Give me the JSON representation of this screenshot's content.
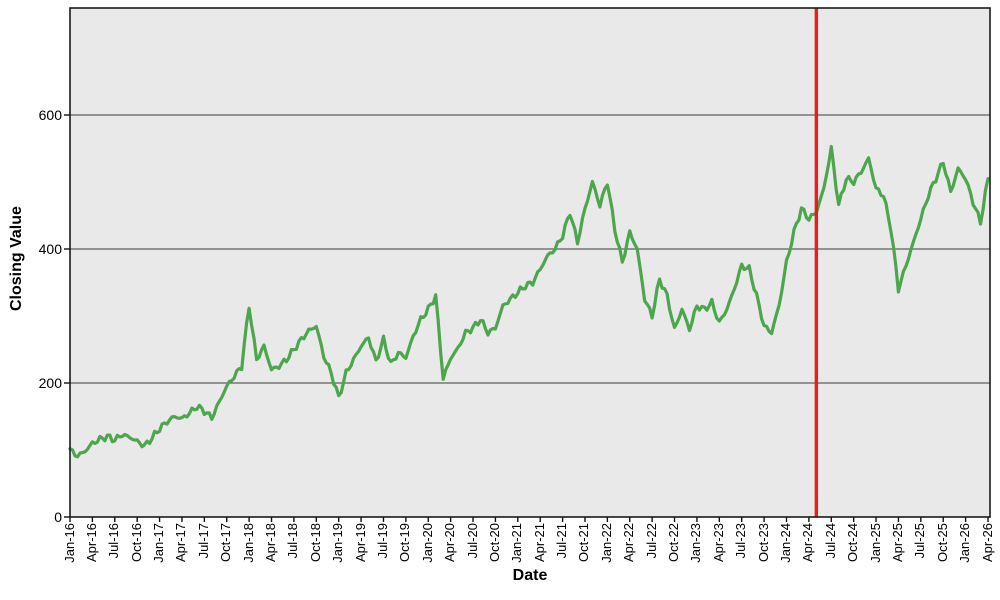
{
  "chart_data": {
    "type": "line",
    "title": "",
    "xlabel": "Date",
    "ylabel": "Closing Value",
    "x_unit": "month",
    "x_range": {
      "start": "Jan-16",
      "end": "Apr-26",
      "months_total": 124
    },
    "x_tick_labels": [
      "Jan-16",
      "Apr-16",
      "Jul-16",
      "Oct-16",
      "Jan-17",
      "Apr-17",
      "Jul-17",
      "Oct-17",
      "Jan-18",
      "Apr-18",
      "Jul-18",
      "Oct-18",
      "Jan-19",
      "Apr-19",
      "Jul-19",
      "Oct-19",
      "Jan-20",
      "Apr-20",
      "Jul-20",
      "Oct-20",
      "Jan-21",
      "Apr-21",
      "Jul-21",
      "Oct-21",
      "Jan-22",
      "Apr-22",
      "Jul-22",
      "Oct-22",
      "Jan-23",
      "Apr-23",
      "Jul-23",
      "Oct-23",
      "Jan-24",
      "Apr-24",
      "Jul-24",
      "Oct-24",
      "Jan-25",
      "Apr-25",
      "Jul-25",
      "Oct-25",
      "Jan-26",
      "Apr-26"
    ],
    "y_ticks": [
      0,
      200,
      400,
      600
    ],
    "ylim": [
      0,
      760
    ],
    "grid": "horizontal",
    "legend": "none",
    "plot_bg_color": "#E9E9E9",
    "grid_color": "#5F5F5F",
    "frame_color": "#1A1A1A",
    "tick_color": "#111111",
    "series": [
      {
        "name": "Closing Value",
        "color": "#4CA64C",
        "start_month": "Jan-16",
        "interval": "monthly",
        "values": [
          100,
          91,
          98,
          110,
          116,
          120,
          115,
          123,
          119,
          113,
          106,
          118,
          132,
          142,
          150,
          147,
          155,
          165,
          158,
          148,
          172,
          195,
          210,
          225,
          315,
          235,
          255,
          220,
          225,
          235,
          250,
          265,
          278,
          285,
          240,
          215,
          178,
          215,
          235,
          255,
          268,
          232,
          265,
          228,
          245,
          238,
          270,
          295,
          310,
          330,
          207,
          237,
          252,
          275,
          282,
          295,
          275,
          282,
          315,
          325,
          335,
          345,
          350,
          370,
          390,
          400,
          420,
          455,
          410,
          460,
          500,
          465,
          500,
          430,
          380,
          425,
          400,
          325,
          300,
          355,
          330,
          280,
          310,
          280,
          315,
          310,
          320,
          290,
          310,
          340,
          375,
          370,
          330,
          285,
          275,
          315,
          380,
          425,
          460,
          445,
          455,
          490,
          550,
          465,
          505,
          500,
          515,
          535,
          490,
          480,
          430,
          340,
          375,
          410,
          445,
          480,
          505,
          530,
          485,
          520,
          505,
          470,
          440,
          505
        ]
      }
    ],
    "vline": {
      "position": "May-24",
      "month_index": 100,
      "color": "#EE1111"
    }
  }
}
